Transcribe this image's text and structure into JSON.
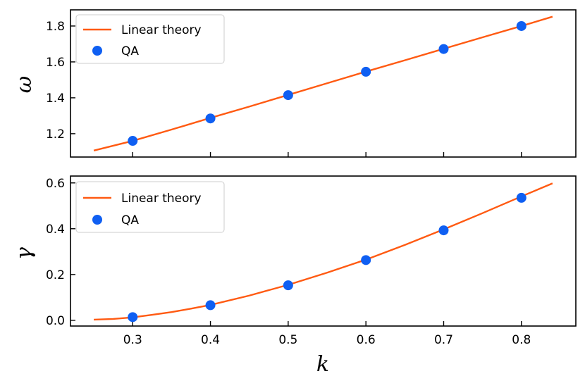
{
  "chart_data": [
    {
      "type": "line",
      "panel": "top",
      "xlabel": "",
      "ylabel": "ω",
      "xlim": [
        0.22,
        0.87
      ],
      "ylim": [
        1.07,
        1.89
      ],
      "grid": false,
      "legend_position": "top-left",
      "x_ticks": [
        0.3,
        0.4,
        0.5,
        0.6,
        0.7,
        0.8
      ],
      "x_tick_labels": [
        "",
        "",
        "",
        "",
        "",
        ""
      ],
      "y_ticks": [
        1.2,
        1.4,
        1.6,
        1.8
      ],
      "y_tick_labels": [
        "1.2",
        "1.4",
        "1.6",
        "1.8"
      ],
      "series": [
        {
          "name": "Linear theory",
          "kind": "line",
          "color": "#ff5a12",
          "x": [
            0.25,
            0.3,
            0.35,
            0.4,
            0.45,
            0.5,
            0.55,
            0.6,
            0.65,
            0.7,
            0.75,
            0.8,
            0.84
          ],
          "y": [
            1.106,
            1.16,
            1.223,
            1.288,
            1.351,
            1.416,
            1.481,
            1.546,
            1.609,
            1.673,
            1.737,
            1.8,
            1.852
          ]
        },
        {
          "name": "QA",
          "kind": "scatter",
          "color": "#0f5ff2",
          "x": [
            0.3,
            0.4,
            0.5,
            0.6,
            0.7,
            0.8
          ],
          "y": [
            1.16,
            1.285,
            1.415,
            1.545,
            1.672,
            1.8
          ]
        }
      ]
    },
    {
      "type": "line",
      "panel": "bottom",
      "xlabel": "k",
      "ylabel": "γ",
      "xlim": [
        0.22,
        0.87
      ],
      "ylim": [
        -0.025,
        0.63
      ],
      "grid": false,
      "legend_position": "top-left",
      "x_ticks": [
        0.3,
        0.4,
        0.5,
        0.6,
        0.7,
        0.8
      ],
      "x_tick_labels": [
        "0.3",
        "0.4",
        "0.5",
        "0.6",
        "0.7",
        "0.8"
      ],
      "y_ticks": [
        0.0,
        0.2,
        0.4,
        0.6
      ],
      "y_tick_labels": [
        "0.0",
        "0.2",
        "0.4",
        "0.6"
      ],
      "series": [
        {
          "name": "Linear theory",
          "kind": "line",
          "color": "#ff5a12",
          "x": [
            0.25,
            0.275,
            0.3,
            0.325,
            0.35,
            0.375,
            0.4,
            0.45,
            0.5,
            0.55,
            0.6,
            0.65,
            0.7,
            0.75,
            0.8,
            0.84
          ],
          "y": [
            0.003,
            0.006,
            0.013,
            0.024,
            0.036,
            0.051,
            0.067,
            0.108,
            0.155,
            0.208,
            0.265,
            0.329,
            0.397,
            0.468,
            0.541,
            0.598
          ]
        },
        {
          "name": "QA",
          "kind": "scatter",
          "color": "#0f5ff2",
          "x": [
            0.3,
            0.4,
            0.5,
            0.6,
            0.7,
            0.8
          ],
          "y": [
            0.014,
            0.066,
            0.153,
            0.263,
            0.393,
            0.535
          ]
        }
      ]
    }
  ]
}
